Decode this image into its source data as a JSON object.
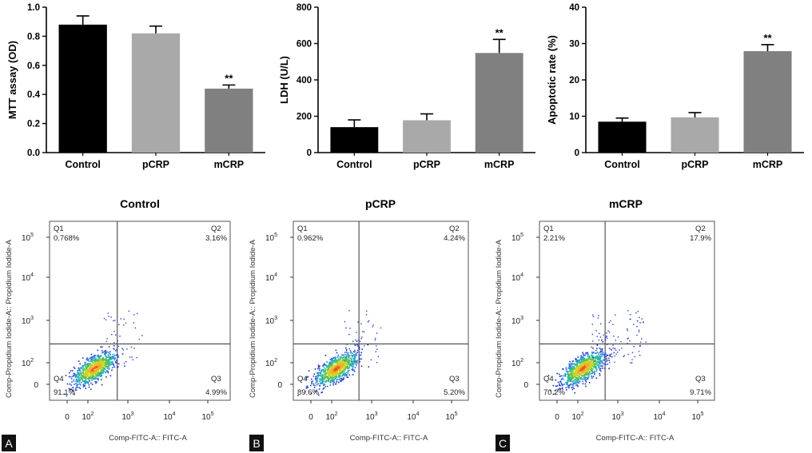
{
  "chart_data": [
    {
      "type": "bar",
      "categories": [
        "Control",
        "pCRP",
        "mCRP"
      ],
      "values": [
        0.88,
        0.82,
        0.44
      ],
      "errors": [
        0.06,
        0.05,
        0.025
      ],
      "significance": [
        "",
        "",
        "**"
      ],
      "ylabel": "MTT assay (OD)",
      "ylim": [
        0,
        1.0
      ],
      "yticks": [
        "0.0",
        "0.2",
        "0.4",
        "0.6",
        "0.8",
        "1.0"
      ],
      "colors": [
        "#000000",
        "#a9a9a9",
        "#808080"
      ]
    },
    {
      "type": "bar",
      "categories": [
        "Control",
        "pCRP",
        "mCRP"
      ],
      "values": [
        140,
        178,
        548
      ],
      "errors": [
        40,
        35,
        75
      ],
      "significance": [
        "",
        "",
        "**"
      ],
      "ylabel": "LDH (U/L)",
      "ylim": [
        0,
        800
      ],
      "yticks": [
        "0",
        "200",
        "400",
        "600",
        "800"
      ],
      "colors": [
        "#000000",
        "#a9a9a9",
        "#808080"
      ]
    },
    {
      "type": "bar",
      "categories": [
        "Control",
        "pCRP",
        "mCRP"
      ],
      "values": [
        8.5,
        9.7,
        27.9
      ],
      "errors": [
        1.0,
        1.3,
        1.8
      ],
      "significance": [
        "",
        "",
        "**"
      ],
      "ylabel": "Apoptotic rate (%)",
      "ylim": [
        0,
        40
      ],
      "yticks": [
        "0",
        "10",
        "20",
        "30",
        "40"
      ],
      "colors": [
        "#000000",
        "#a9a9a9",
        "#808080"
      ]
    },
    {
      "type": "scatter",
      "title": "Control",
      "xlabel": "Comp-FITC-A:: FITC-A",
      "ylabel": "Comp-Propidium Iodide-A:: Propidium Iodide-A",
      "quadrants": {
        "Q1": "0.768%",
        "Q2": "3.16%",
        "Q3": "4.99%",
        "Q4": "91.1%"
      }
    },
    {
      "type": "scatter",
      "title": "pCRP",
      "xlabel": "Comp-FITC-A:: FITC-A",
      "ylabel": "Comp-Propidium Iodide-A:: Propidium Iodide-A",
      "quadrants": {
        "Q1": "0.962%",
        "Q2": "4.24%",
        "Q3": "5.20%",
        "Q4": "89.6%"
      }
    },
    {
      "type": "scatter",
      "title": "mCRP",
      "xlabel": "Comp-FITC-A:: FITC-A",
      "ylabel": "Comp-Propidium Iodide-A:: Propidium Iodide-A",
      "quadrants": {
        "Q1": "2.21%",
        "Q2": "17.9%",
        "Q3": "9.71%",
        "Q4": "70.2%"
      }
    }
  ],
  "panel_labels": [
    "A",
    "B",
    "C"
  ],
  "quadrant_names": [
    "Q1",
    "Q2",
    "Q3",
    "Q4"
  ],
  "flow_tick_labels": [
    "0",
    "10",
    "2",
    "3",
    "4",
    "5"
  ]
}
